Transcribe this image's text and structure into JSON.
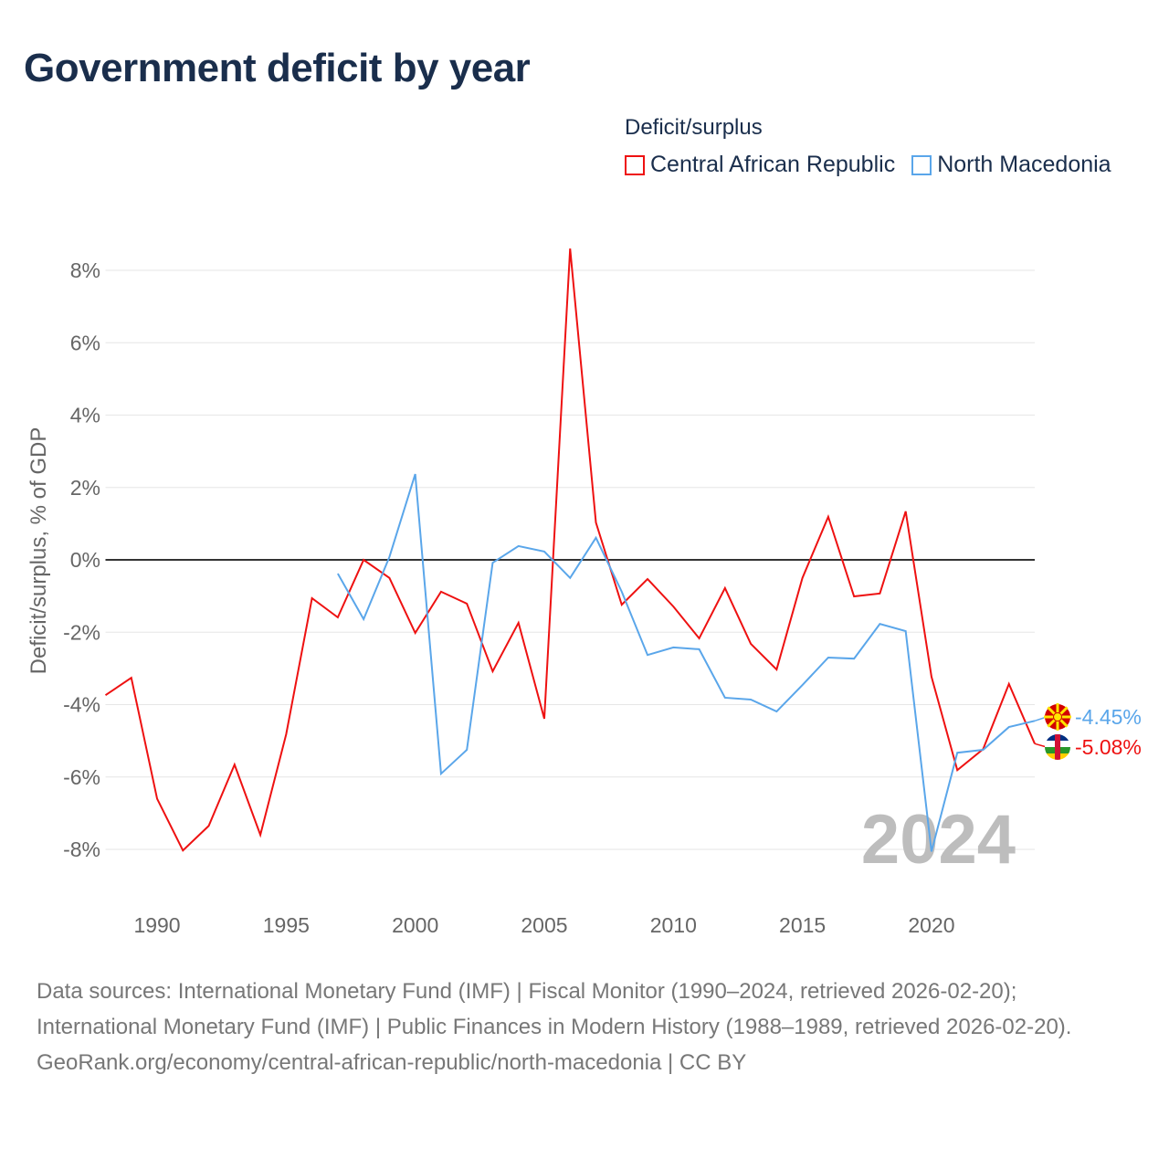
{
  "title": "Government deficit by year",
  "legend": {
    "title": "Deficit/surplus",
    "items": [
      {
        "label": "Central African Republic",
        "color": "#ee1111"
      },
      {
        "label": "North Macedonia",
        "color": "#5aa6ea"
      }
    ]
  },
  "chart_data": {
    "type": "line",
    "title": "Government deficit by year",
    "xlabel": "",
    "ylabel": "Deficit/surplus, % of GDP",
    "xlim": [
      1988,
      2024
    ],
    "ylim": [
      -9.2,
      8.8
    ],
    "x_ticks": [
      1990,
      1995,
      2000,
      2005,
      2010,
      2015,
      2020
    ],
    "y_ticks": [
      -8,
      -6,
      -4,
      -2,
      0,
      2,
      4,
      6,
      8
    ],
    "y_tick_labels": [
      "-8%",
      "-6%",
      "-4%",
      "-2%",
      "0%",
      "2%",
      "4%",
      "6%",
      "8%"
    ],
    "grid": true,
    "legend_position": "top-right",
    "year_annotation": "2024",
    "series": [
      {
        "name": "Central African Republic",
        "color": "#ee1111",
        "end_label": "-5.08%",
        "x": [
          1988,
          1989,
          1990,
          1991,
          1992,
          1993,
          1994,
          1995,
          1996,
          1997,
          1998,
          1999,
          2000,
          2001,
          2002,
          2003,
          2004,
          2005,
          2006,
          2007,
          2008,
          2009,
          2010,
          2011,
          2012,
          2013,
          2014,
          2015,
          2016,
          2017,
          2018,
          2019,
          2020,
          2021,
          2022,
          2023,
          2024
        ],
        "values": [
          -3.74,
          -3.26,
          -6.6,
          -8.03,
          -7.35,
          -5.66,
          -7.6,
          -4.82,
          -1.06,
          -1.59,
          0.0,
          -0.5,
          -2.02,
          -0.88,
          -1.21,
          -3.08,
          -1.74,
          -4.39,
          8.6,
          1.03,
          -1.24,
          -0.53,
          -1.29,
          -2.17,
          -0.78,
          -2.32,
          -3.03,
          -0.5,
          1.19,
          -1.01,
          -0.93,
          1.34,
          -3.23,
          -5.81,
          -5.23,
          -3.43,
          -5.08
        ]
      },
      {
        "name": "North Macedonia",
        "color": "#5aa6ea",
        "end_label": "-4.45%",
        "x": [
          1997,
          1998,
          1999,
          2000,
          2001,
          2002,
          2003,
          2004,
          2005,
          2006,
          2007,
          2008,
          2009,
          2010,
          2011,
          2012,
          2013,
          2014,
          2015,
          2016,
          2017,
          2018,
          2019,
          2020,
          2021,
          2022,
          2023,
          2024
        ],
        "values": [
          -0.38,
          -1.64,
          0.08,
          2.37,
          -5.91,
          -5.25,
          -0.08,
          0.38,
          0.23,
          -0.5,
          0.61,
          -0.88,
          -2.63,
          -2.42,
          -2.47,
          -3.81,
          -3.86,
          -4.19,
          -3.46,
          -2.7,
          -2.73,
          -1.77,
          -1.97,
          -8.06,
          -5.33,
          -5.25,
          -4.62,
          -4.45
        ]
      }
    ]
  },
  "sources": {
    "line1": "Data sources: International Monetary Fund (IMF) | Fiscal Monitor (1990–2024, retrieved 2026-02-20); International Monetary Fund (IMF) | Public Finances in Modern History (1988–1989, retrieved 2026-02-20).",
    "line2": "GeoRank.org/economy/central-african-republic/north-macedonia | CC BY"
  }
}
